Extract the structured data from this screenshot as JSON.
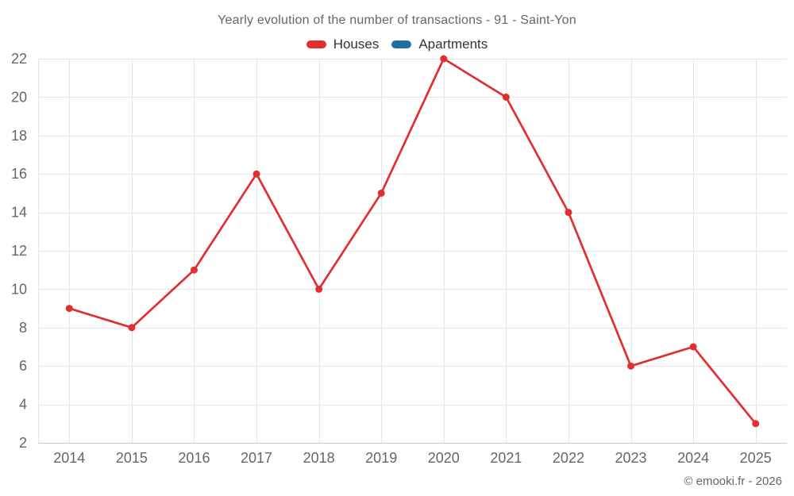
{
  "chart_data": {
    "type": "line",
    "title": "Yearly evolution of the number of transactions - 91 - Saint-Yon",
    "categories": [
      "2014",
      "2015",
      "2016",
      "2017",
      "2018",
      "2019",
      "2020",
      "2021",
      "2022",
      "2023",
      "2024",
      "2025"
    ],
    "series": [
      {
        "name": "Houses",
        "color": "#e02f2f",
        "values": [
          9,
          8,
          11,
          16,
          10,
          15,
          22,
          20,
          14,
          6,
          7,
          3
        ]
      },
      {
        "name": "Apartments",
        "color": "#1f6fa5",
        "values": []
      }
    ],
    "xlabel": "",
    "ylabel": "",
    "ylim": [
      2,
      22
    ],
    "yticks": [
      2,
      4,
      6,
      8,
      10,
      12,
      14,
      16,
      18,
      20,
      22
    ],
    "grid": true,
    "legend_position": "top",
    "marker": "circle",
    "credit": "© emooki.fr - 2026"
  },
  "style": {
    "background": "#ffffff",
    "title_color": "#666666",
    "legend_text_color": "#333333",
    "tick_label_color": "#666666",
    "grid_color": "#e6e6e6",
    "axis_line_color": "#c9c9c9",
    "credit_color": "#666666"
  }
}
